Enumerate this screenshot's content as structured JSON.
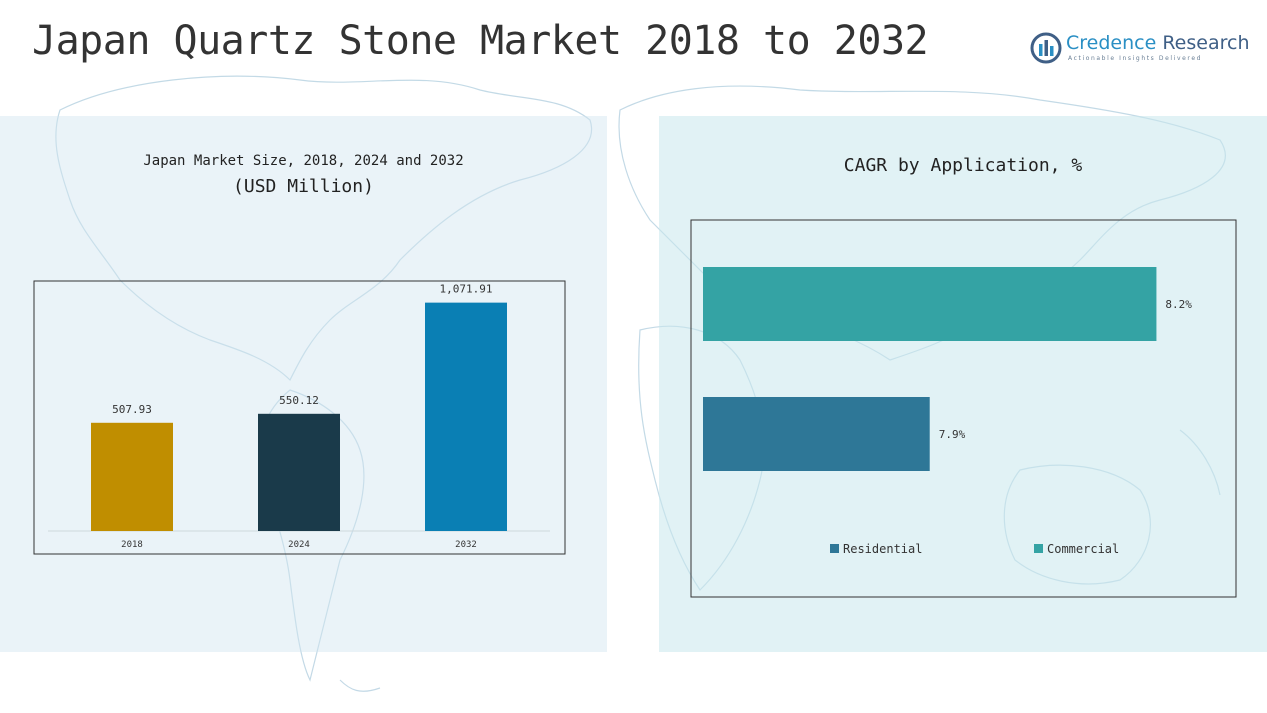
{
  "header": {
    "title": "Japan Quartz Stone Market 2018 to 2032"
  },
  "logo": {
    "name_part1": "Credence",
    "name_part2": "Research",
    "tagline": "Actionable Insights Delivered",
    "icon": "bar-chart-logo-icon"
  },
  "colors": {
    "bar_2018": "#c08e00",
    "bar_2024": "#1a3a4a",
    "bar_2032": "#0a7fb4",
    "residential": "#2e7797",
    "commercial": "#34a3a4"
  },
  "chart_data": [
    {
      "type": "bar",
      "title": "Japan Market Size, 2018, 2024 and 2032",
      "subtitle": "(USD Million)",
      "categories": [
        "2018",
        "2024",
        "2032"
      ],
      "values": [
        507.93,
        550.12,
        1071.91
      ],
      "value_labels": [
        "507.93",
        "550.12",
        "1,071.91"
      ],
      "ylim": [
        0,
        1150
      ],
      "grid": false,
      "legend": "none"
    },
    {
      "type": "bar",
      "orientation": "horizontal",
      "title": "CAGR by Application, %",
      "categories": [
        "Commercial",
        "Residential"
      ],
      "values": [
        8.2,
        7.9
      ],
      "value_labels": [
        "8.2%",
        "7.9%"
      ],
      "xlim": [
        7.6,
        8.3
      ],
      "grid": false,
      "legend": "bottom",
      "legend_entries": [
        "Residential",
        "Commercial"
      ]
    }
  ]
}
